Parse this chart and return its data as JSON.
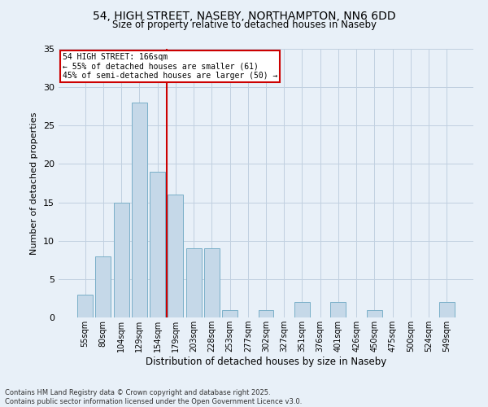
{
  "title1": "54, HIGH STREET, NASEBY, NORTHAMPTON, NN6 6DD",
  "title2": "Size of property relative to detached houses in Naseby",
  "xlabel": "Distribution of detached houses by size in Naseby",
  "ylabel": "Number of detached properties",
  "categories": [
    "55sqm",
    "80sqm",
    "104sqm",
    "129sqm",
    "154sqm",
    "179sqm",
    "203sqm",
    "228sqm",
    "253sqm",
    "277sqm",
    "302sqm",
    "327sqm",
    "351sqm",
    "376sqm",
    "401sqm",
    "426sqm",
    "450sqm",
    "475sqm",
    "500sqm",
    "524sqm",
    "549sqm"
  ],
  "values": [
    3,
    8,
    15,
    28,
    19,
    16,
    9,
    9,
    1,
    0,
    1,
    0,
    2,
    0,
    2,
    0,
    1,
    0,
    0,
    0,
    2
  ],
  "bar_color": "#c5d8e8",
  "bar_edge_color": "#7aafc8",
  "grid_color": "#c0d0e0",
  "background_color": "#e8f0f8",
  "vline_x": 4.5,
  "vline_color": "#cc0000",
  "annotation_text": "54 HIGH STREET: 166sqm\n← 55% of detached houses are smaller (61)\n45% of semi-detached houses are larger (50) →",
  "annotation_box_color": "#ffffff",
  "annotation_box_edge": "#cc0000",
  "footer": "Contains HM Land Registry data © Crown copyright and database right 2025.\nContains public sector information licensed under the Open Government Licence v3.0.",
  "ylim": [
    0,
    35
  ],
  "yticks": [
    0,
    5,
    10,
    15,
    20,
    25,
    30,
    35
  ]
}
